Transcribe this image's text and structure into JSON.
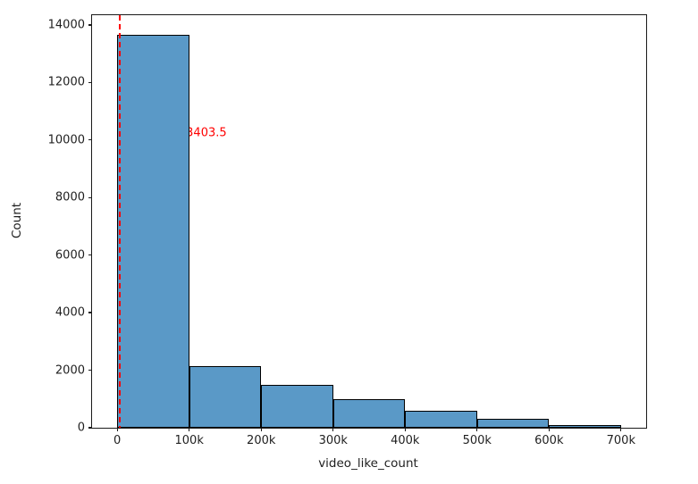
{
  "chart_data": {
    "type": "bar",
    "subtype": "histogram",
    "title": "",
    "xlabel": "video_like_count",
    "ylabel": "Count",
    "grid": false,
    "legend": null,
    "xlim": [
      -35000,
      735000
    ],
    "ylim": [
      0,
      14341
    ],
    "bin_width": 100000,
    "bins": [
      {
        "x0": 0,
        "x1": 100000,
        "count": 13650
      },
      {
        "x0": 100000,
        "x1": 200000,
        "count": 2130
      },
      {
        "x0": 200000,
        "x1": 300000,
        "count": 1480
      },
      {
        "x0": 300000,
        "x1": 400000,
        "count": 990
      },
      {
        "x0": 400000,
        "x1": 500000,
        "count": 590
      },
      {
        "x0": 500000,
        "x1": 600000,
        "count": 310
      },
      {
        "x0": 600000,
        "x1": 700000,
        "count": 90
      }
    ],
    "x_ticks": [
      {
        "v": 0,
        "label": "0"
      },
      {
        "v": 100000,
        "label": "100k"
      },
      {
        "v": 200000,
        "label": "200k"
      },
      {
        "v": 300000,
        "label": "300k"
      },
      {
        "v": 400000,
        "label": "400k"
      },
      {
        "v": 500000,
        "label": "500k"
      },
      {
        "v": 600000,
        "label": "600k"
      },
      {
        "v": 700000,
        "label": "700k"
      }
    ],
    "y_ticks": [
      {
        "v": 0,
        "label": "0"
      },
      {
        "v": 2000,
        "label": "2000"
      },
      {
        "v": 4000,
        "label": "4000"
      },
      {
        "v": 6000,
        "label": "6000"
      },
      {
        "v": 8000,
        "label": "8000"
      },
      {
        "v": 10000,
        "label": "10000"
      },
      {
        "v": 12000,
        "label": "12000"
      },
      {
        "v": 14000,
        "label": "14000"
      }
    ],
    "median_line": {
      "value": 3403.5,
      "label": "median: 3403.5",
      "label_y": 10250,
      "linestyle": "dashed"
    },
    "colors": {
      "bar_fill": "#5a99c7",
      "bar_edge": "#000000",
      "median": "#ff0000",
      "spine": "#1a1a1a",
      "text": "#1f1f1f",
      "background": "#ffffff"
    }
  }
}
